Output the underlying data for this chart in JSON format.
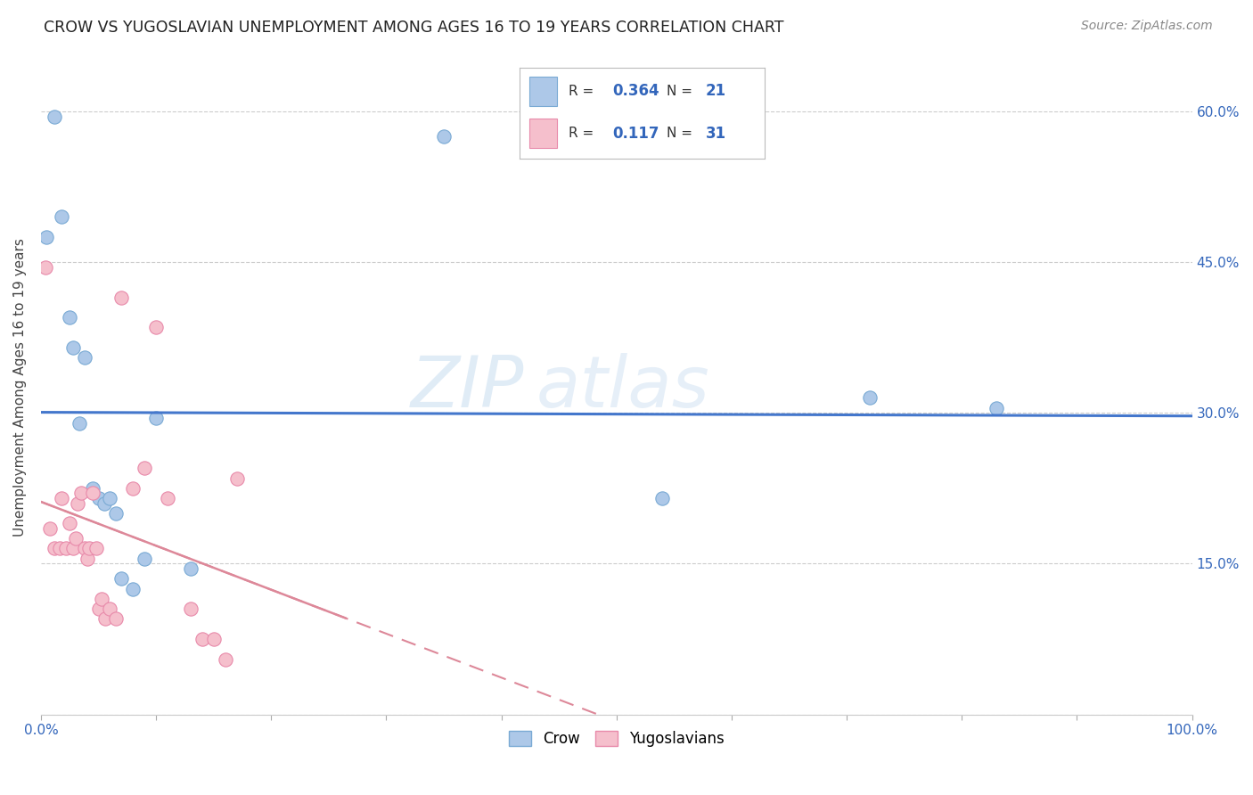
{
  "title": "CROW VS YUGOSLAVIAN UNEMPLOYMENT AMONG AGES 16 TO 19 YEARS CORRELATION CHART",
  "source": "Source: ZipAtlas.com",
  "ylabel": "Unemployment Among Ages 16 to 19 years",
  "xlim": [
    0.0,
    1.0
  ],
  "ylim": [
    0.0,
    0.65
  ],
  "x_ticks": [
    0.0,
    0.1,
    0.2,
    0.3,
    0.4,
    0.5,
    0.6,
    0.7,
    0.8,
    0.9,
    1.0
  ],
  "x_tick_labels": [
    "0.0%",
    "",
    "",
    "",
    "",
    "",
    "",
    "",
    "",
    "",
    "100.0%"
  ],
  "y_ticks": [
    0.0,
    0.15,
    0.3,
    0.45,
    0.6
  ],
  "y_tick_labels": [
    "",
    "15.0%",
    "30.0%",
    "45.0%",
    "60.0%"
  ],
  "crow_color": "#adc8e8",
  "crow_edge_color": "#7aaad4",
  "yugo_color": "#f5bfcc",
  "yugo_edge_color": "#e88aaa",
  "crow_line_color": "#4477cc",
  "yugo_line_color": "#dd8899",
  "legend_r_crow": "0.364",
  "legend_n_crow": "21",
  "legend_r_yugo": "0.117",
  "legend_n_yugo": "31",
  "watermark_zip": "ZIP",
  "watermark_atlas": "atlas",
  "crow_points_x": [
    0.005,
    0.012,
    0.018,
    0.025,
    0.028,
    0.033,
    0.038,
    0.045,
    0.05,
    0.055,
    0.06,
    0.065,
    0.07,
    0.08,
    0.09,
    0.1,
    0.13,
    0.35,
    0.54,
    0.72,
    0.83
  ],
  "crow_points_y": [
    0.475,
    0.595,
    0.495,
    0.395,
    0.365,
    0.29,
    0.355,
    0.225,
    0.215,
    0.21,
    0.215,
    0.2,
    0.135,
    0.125,
    0.155,
    0.295,
    0.145,
    0.575,
    0.215,
    0.315,
    0.305
  ],
  "yugo_points_x": [
    0.004,
    0.008,
    0.012,
    0.016,
    0.018,
    0.022,
    0.025,
    0.028,
    0.03,
    0.032,
    0.035,
    0.038,
    0.04,
    0.042,
    0.045,
    0.048,
    0.05,
    0.053,
    0.056,
    0.06,
    0.065,
    0.07,
    0.08,
    0.09,
    0.1,
    0.11,
    0.13,
    0.14,
    0.15,
    0.16,
    0.17
  ],
  "yugo_points_y": [
    0.445,
    0.185,
    0.165,
    0.165,
    0.215,
    0.165,
    0.19,
    0.165,
    0.175,
    0.21,
    0.22,
    0.165,
    0.155,
    0.165,
    0.22,
    0.165,
    0.105,
    0.115,
    0.095,
    0.105,
    0.095,
    0.415,
    0.225,
    0.245,
    0.385,
    0.215,
    0.105,
    0.075,
    0.075,
    0.055,
    0.235
  ],
  "marker_size": 11,
  "bg_color": "#ffffff",
  "grid_color": "#cccccc"
}
